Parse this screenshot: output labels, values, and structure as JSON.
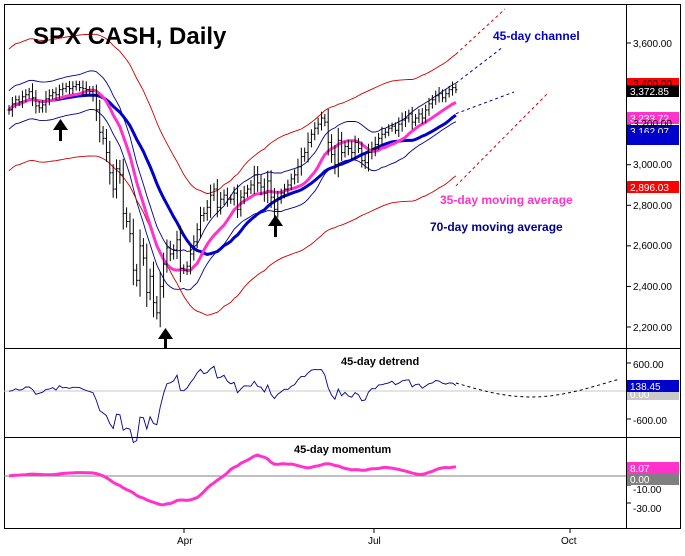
{
  "chart_data": {
    "type": "line",
    "title": "SPX CASH, Daily",
    "price_panel": {
      "y_ticks": [
        "3,600.00",
        "3,400.00",
        "3,200.00",
        "3,000.00",
        "2,800.00",
        "2,600.00",
        "2,400.00",
        "2,200.00"
      ],
      "ylim": [
        2150,
        3680
      ],
      "annotations": {
        "channel": "45-day channel",
        "ma35": "35-day moving average",
        "ma70": "70-day moving average"
      },
      "value_tags": [
        {
          "label": "3,485.39",
          "value": 3485.39,
          "bg": "#ff0000",
          "fg": "#ff0000"
        },
        {
          "label": "3,372.85",
          "value": 3372.85,
          "bg": "#000000",
          "fg": "#ffffff"
        },
        {
          "label": "3,233.72",
          "value": 3233.72,
          "bg": "#ff33cc",
          "fg": "#ffffff"
        },
        {
          "label": "3,162.07",
          "value": 3162.07,
          "bg": "#0000cc",
          "fg": "#ffffff"
        },
        {
          "label": "3,133.18",
          "value": 3133.18,
          "bg": "#0000cc",
          "fg": "#0000cc"
        },
        {
          "label": "2,896.03",
          "value": 2896.03,
          "bg": "#ff0000",
          "fg": "#ffffff"
        }
      ],
      "closes": [
        3270,
        3300,
        3320,
        3310,
        3335,
        3345,
        3360,
        3330,
        3290,
        3280,
        3295,
        3325,
        3340,
        3355,
        3345,
        3370,
        3375,
        3385,
        3375,
        3385,
        3395,
        3380,
        3375,
        3370,
        3360,
        3340,
        3270,
        3160,
        3130,
        3060,
        2960,
        2880,
        2980,
        2950,
        2760,
        2720,
        2660,
        2480,
        2430,
        2600,
        2540,
        2370,
        2450,
        2320,
        2270,
        2400,
        2510,
        2590,
        2560,
        2580,
        2630,
        2490,
        2480,
        2500,
        2560,
        2620,
        2680,
        2750,
        2760,
        2790,
        2850,
        2880,
        2790,
        2830,
        2850,
        2830,
        2830,
        2860,
        2780,
        2840,
        2860,
        2880,
        2900,
        2950,
        2910,
        2890,
        2860,
        2920,
        2840,
        2780,
        2830,
        2860,
        2880,
        2900,
        2930,
        2950,
        2990,
        3040,
        3060,
        3110,
        3150,
        3180,
        3200,
        3230,
        3210,
        3110,
        3050,
        3000,
        3120,
        3060,
        3090,
        3080,
        3060,
        3110,
        3080,
        3020,
        3010,
        3060,
        3080,
        3100,
        3130,
        3150,
        3160,
        3180,
        3190,
        3170,
        3200,
        3220,
        3230,
        3250,
        3210,
        3230,
        3250,
        3230,
        3270,
        3300,
        3320,
        3340,
        3350,
        3330,
        3350,
        3370,
        3380,
        3370
      ]
    },
    "detrend_panel": {
      "label": "45-day detrend",
      "y_ticks": [
        "600.00",
        "-600.00"
      ],
      "ylim": [
        -900,
        800
      ],
      "value_tags": [
        {
          "label": "138.45",
          "value": 138.45,
          "bg": "#0000cc",
          "fg": "#ffffff"
        },
        {
          "label": "0.00",
          "value": 0,
          "bg": "#c8c8c8",
          "fg": "#ffffff"
        }
      ]
    },
    "momentum_panel": {
      "label": "45-day momentum",
      "y_ticks": [
        "-10.00",
        "-30.00"
      ],
      "ylim": [
        -36,
        16
      ],
      "value_tags": [
        {
          "label": "8.07",
          "value": 8.07,
          "bg": "#ff33cc",
          "fg": "#ffffff"
        },
        {
          "label": "0.00",
          "value": 0,
          "bg": "#808080",
          "fg": "#ffffff"
        }
      ]
    },
    "x_ticks": [
      "Apr",
      "Jul",
      "Oct"
    ],
    "colors": {
      "channel": "#cc0000",
      "band": "#00008b",
      "ma35": "#ff33cc",
      "ma70": "#0000cc",
      "annotation_channel": "#0000cc",
      "annotation_ma35": "#ff33cc",
      "annotation_ma70": "#00008b"
    }
  }
}
